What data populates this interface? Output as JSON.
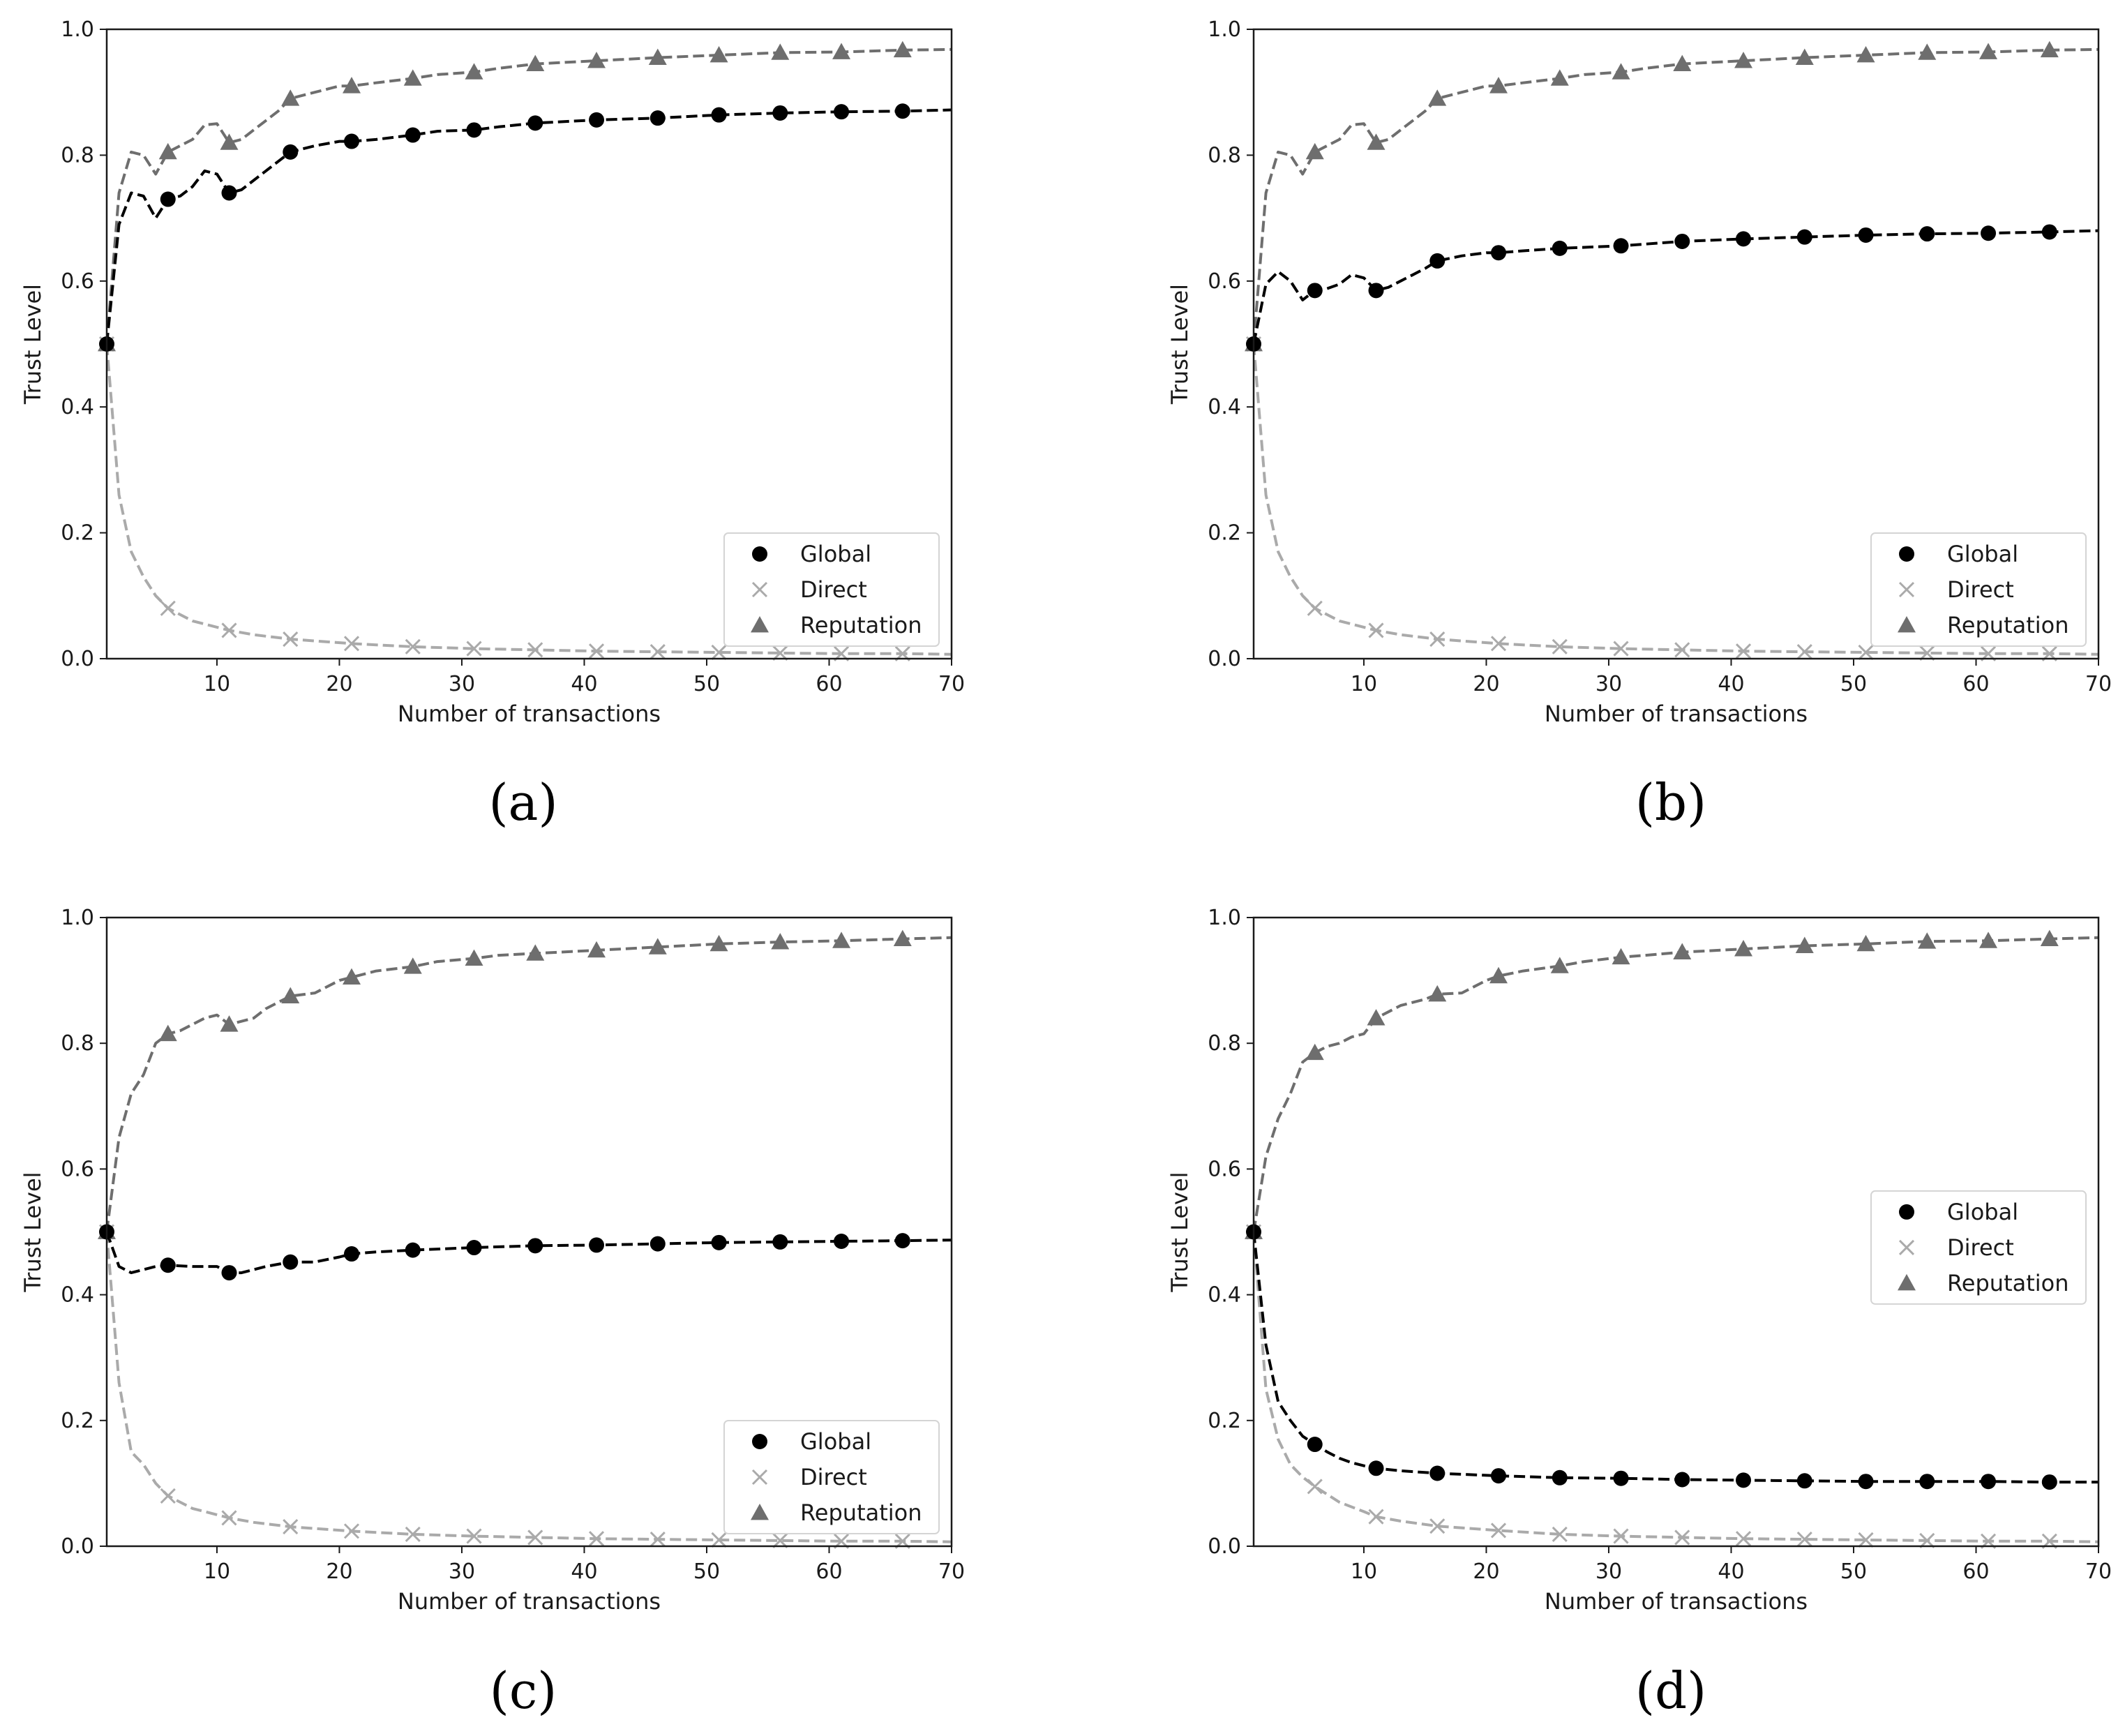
{
  "figure": {
    "panels": [
      {
        "caption": "(a)"
      },
      {
        "caption": "(b)"
      },
      {
        "caption": "(c)"
      },
      {
        "caption": "(d)"
      }
    ]
  },
  "styles": {
    "Global": {
      "color": "#000000",
      "marker": "circle"
    },
    "Direct": {
      "color": "#aaaaaa",
      "marker": "x"
    },
    "Reputation": {
      "color": "#6e6e6e",
      "marker": "triangle"
    }
  },
  "chart_data": [
    {
      "type": "line",
      "caption": "(a)",
      "xlabel": "Number of transactions",
      "ylabel": "Trust Level",
      "xlim": [
        1,
        70
      ],
      "ylim": [
        0,
        1.0
      ],
      "xticks": [
        10,
        20,
        30,
        40,
        50,
        60,
        70
      ],
      "yticks": [
        0.0,
        0.2,
        0.4,
        0.6,
        0.8,
        1.0
      ],
      "legend": {
        "position": "bottom-right",
        "entries": [
          "Global",
          "Direct",
          "Reputation"
        ]
      },
      "series": [
        {
          "name": "Global",
          "x": [
            1,
            2,
            3,
            4,
            5,
            6,
            7,
            8,
            9,
            10,
            11,
            12,
            13,
            14,
            15,
            16,
            18,
            20,
            21,
            23,
            26,
            28,
            31,
            33,
            36,
            41,
            46,
            51,
            56,
            61,
            66,
            70
          ],
          "y": [
            0.5,
            0.69,
            0.74,
            0.735,
            0.7,
            0.73,
            0.735,
            0.75,
            0.775,
            0.77,
            0.74,
            0.745,
            0.76,
            0.775,
            0.79,
            0.805,
            0.815,
            0.822,
            0.822,
            0.825,
            0.832,
            0.838,
            0.84,
            0.845,
            0.851,
            0.856,
            0.859,
            0.864,
            0.867,
            0.869,
            0.87,
            0.872
          ]
        },
        {
          "name": "Direct",
          "x": [
            1,
            2,
            3,
            4,
            5,
            6,
            8,
            10,
            11,
            13,
            16,
            21,
            26,
            31,
            36,
            41,
            46,
            51,
            56,
            61,
            66,
            70
          ],
          "y": [
            0.5,
            0.26,
            0.17,
            0.13,
            0.1,
            0.08,
            0.06,
            0.05,
            0.045,
            0.038,
            0.031,
            0.024,
            0.019,
            0.016,
            0.014,
            0.012,
            0.011,
            0.01,
            0.009,
            0.008,
            0.008,
            0.007
          ]
        },
        {
          "name": "Reputation",
          "x": [
            1,
            2,
            3,
            4,
            5,
            6,
            7,
            8,
            9,
            10,
            11,
            12,
            13,
            14,
            15,
            16,
            18,
            20,
            21,
            23,
            26,
            28,
            31,
            33,
            36,
            41,
            46,
            51,
            56,
            61,
            66,
            70
          ],
          "y": [
            0.5,
            0.74,
            0.805,
            0.8,
            0.77,
            0.805,
            0.815,
            0.825,
            0.848,
            0.85,
            0.82,
            0.825,
            0.84,
            0.855,
            0.87,
            0.89,
            0.9,
            0.91,
            0.91,
            0.915,
            0.922,
            0.928,
            0.932,
            0.938,
            0.945,
            0.95,
            0.955,
            0.959,
            0.963,
            0.964,
            0.967,
            0.968
          ]
        }
      ]
    },
    {
      "type": "line",
      "caption": "(b)",
      "xlabel": "Number of transactions",
      "ylabel": "Trust Level",
      "xlim": [
        1,
        70
      ],
      "ylim": [
        0,
        1.0
      ],
      "xticks": [
        10,
        20,
        30,
        40,
        50,
        60,
        70
      ],
      "yticks": [
        0.0,
        0.2,
        0.4,
        0.6,
        0.8,
        1.0
      ],
      "legend": {
        "position": "bottom-right",
        "entries": [
          "Global",
          "Direct",
          "Reputation"
        ]
      },
      "series": [
        {
          "name": "Global",
          "x": [
            1,
            2,
            3,
            4,
            5,
            6,
            7,
            8,
            9,
            10,
            11,
            12,
            13,
            14,
            15,
            16,
            18,
            20,
            21,
            23,
            26,
            31,
            36,
            41,
            46,
            51,
            56,
            61,
            66,
            70
          ],
          "y": [
            0.5,
            0.595,
            0.615,
            0.6,
            0.57,
            0.585,
            0.588,
            0.595,
            0.61,
            0.605,
            0.585,
            0.59,
            0.6,
            0.61,
            0.62,
            0.632,
            0.64,
            0.645,
            0.645,
            0.648,
            0.652,
            0.656,
            0.663,
            0.667,
            0.67,
            0.673,
            0.675,
            0.676,
            0.678,
            0.68
          ]
        },
        {
          "name": "Direct",
          "x": [
            1,
            2,
            3,
            4,
            5,
            6,
            8,
            10,
            11,
            13,
            16,
            21,
            26,
            31,
            36,
            41,
            46,
            51,
            56,
            61,
            66,
            70
          ],
          "y": [
            0.5,
            0.26,
            0.17,
            0.13,
            0.1,
            0.08,
            0.06,
            0.05,
            0.045,
            0.038,
            0.031,
            0.024,
            0.019,
            0.016,
            0.014,
            0.012,
            0.011,
            0.01,
            0.009,
            0.008,
            0.008,
            0.007
          ]
        },
        {
          "name": "Reputation",
          "x": [
            1,
            2,
            3,
            4,
            5,
            6,
            7,
            8,
            9,
            10,
            11,
            12,
            13,
            14,
            15,
            16,
            18,
            20,
            21,
            23,
            26,
            28,
            31,
            33,
            36,
            41,
            46,
            51,
            56,
            61,
            66,
            70
          ],
          "y": [
            0.5,
            0.74,
            0.805,
            0.8,
            0.77,
            0.805,
            0.815,
            0.825,
            0.848,
            0.85,
            0.82,
            0.825,
            0.84,
            0.855,
            0.87,
            0.89,
            0.9,
            0.91,
            0.91,
            0.915,
            0.922,
            0.928,
            0.932,
            0.938,
            0.945,
            0.95,
            0.955,
            0.959,
            0.963,
            0.964,
            0.967,
            0.968
          ]
        }
      ]
    },
    {
      "type": "line",
      "caption": "(c)",
      "xlabel": "Number of transactions",
      "ylabel": "Trust Level",
      "xlim": [
        1,
        70
      ],
      "ylim": [
        0,
        1.0
      ],
      "xticks": [
        10,
        20,
        30,
        40,
        50,
        60,
        70
      ],
      "yticks": [
        0.0,
        0.2,
        0.4,
        0.6,
        0.8,
        1.0
      ],
      "legend": {
        "position": "bottom-right",
        "entries": [
          "Global",
          "Direct",
          "Reputation"
        ]
      },
      "series": [
        {
          "name": "Global",
          "x": [
            1,
            2,
            3,
            4,
            5,
            6,
            8,
            10,
            11,
            12,
            13,
            14,
            16,
            18,
            20,
            21,
            23,
            26,
            31,
            36,
            41,
            46,
            51,
            56,
            61,
            66,
            70
          ],
          "y": [
            0.5,
            0.445,
            0.435,
            0.44,
            0.445,
            0.447,
            0.445,
            0.445,
            0.435,
            0.435,
            0.44,
            0.445,
            0.452,
            0.452,
            0.46,
            0.465,
            0.468,
            0.471,
            0.475,
            0.478,
            0.479,
            0.481,
            0.483,
            0.484,
            0.485,
            0.486,
            0.487
          ]
        },
        {
          "name": "Direct",
          "x": [
            1,
            2,
            3,
            4,
            5,
            6,
            8,
            10,
            11,
            13,
            16,
            21,
            26,
            31,
            36,
            41,
            46,
            51,
            56,
            61,
            66,
            70
          ],
          "y": [
            0.5,
            0.26,
            0.15,
            0.13,
            0.1,
            0.08,
            0.06,
            0.05,
            0.045,
            0.038,
            0.031,
            0.024,
            0.019,
            0.016,
            0.014,
            0.012,
            0.011,
            0.01,
            0.009,
            0.008,
            0.008,
            0.007
          ]
        },
        {
          "name": "Reputation",
          "x": [
            1,
            2,
            3,
            4,
            5,
            6,
            7,
            8,
            9,
            10,
            11,
            12,
            13,
            14,
            15,
            16,
            18,
            20,
            21,
            23,
            26,
            28,
            31,
            33,
            36,
            41,
            46,
            51,
            56,
            61,
            66,
            70
          ],
          "y": [
            0.5,
            0.65,
            0.72,
            0.75,
            0.8,
            0.815,
            0.82,
            0.83,
            0.84,
            0.845,
            0.83,
            0.835,
            0.84,
            0.855,
            0.865,
            0.875,
            0.88,
            0.9,
            0.905,
            0.915,
            0.922,
            0.93,
            0.935,
            0.94,
            0.943,
            0.948,
            0.953,
            0.958,
            0.961,
            0.963,
            0.966,
            0.968
          ]
        }
      ]
    },
    {
      "type": "line",
      "caption": "(d)",
      "xlabel": "Number of transactions",
      "ylabel": "Trust Level",
      "xlim": [
        1,
        70
      ],
      "ylim": [
        0,
        1.0
      ],
      "xticks": [
        10,
        20,
        30,
        40,
        50,
        60,
        70
      ],
      "yticks": [
        0.0,
        0.2,
        0.4,
        0.6,
        0.8,
        1.0
      ],
      "legend": {
        "position": "center-right",
        "entries": [
          "Global",
          "Direct",
          "Reputation"
        ]
      },
      "series": [
        {
          "name": "Global",
          "x": [
            1,
            2,
            3,
            4,
            5,
            6,
            7,
            8,
            9,
            10,
            11,
            13,
            16,
            21,
            26,
            31,
            36,
            41,
            46,
            51,
            56,
            61,
            66,
            70
          ],
          "y": [
            0.5,
            0.32,
            0.23,
            0.2,
            0.175,
            0.162,
            0.15,
            0.14,
            0.133,
            0.128,
            0.124,
            0.12,
            0.116,
            0.112,
            0.109,
            0.108,
            0.106,
            0.105,
            0.104,
            0.103,
            0.103,
            0.103,
            0.102,
            0.102
          ]
        },
        {
          "name": "Direct",
          "x": [
            1,
            2,
            3,
            4,
            5,
            6,
            8,
            10,
            11,
            13,
            16,
            21,
            26,
            31,
            36,
            41,
            46,
            51,
            56,
            61,
            66,
            70
          ],
          "y": [
            0.5,
            0.25,
            0.17,
            0.13,
            0.11,
            0.095,
            0.07,
            0.055,
            0.047,
            0.04,
            0.032,
            0.025,
            0.019,
            0.016,
            0.014,
            0.012,
            0.011,
            0.01,
            0.009,
            0.008,
            0.008,
            0.007
          ]
        },
        {
          "name": "Reputation",
          "x": [
            1,
            2,
            3,
            4,
            5,
            6,
            7,
            8,
            9,
            10,
            11,
            12,
            13,
            14,
            15,
            16,
            18,
            20,
            21,
            23,
            26,
            28,
            31,
            33,
            36,
            41,
            46,
            51,
            56,
            61,
            66,
            70
          ],
          "y": [
            0.5,
            0.62,
            0.68,
            0.72,
            0.77,
            0.785,
            0.795,
            0.8,
            0.81,
            0.815,
            0.84,
            0.85,
            0.86,
            0.865,
            0.87,
            0.878,
            0.88,
            0.9,
            0.907,
            0.915,
            0.923,
            0.93,
            0.937,
            0.94,
            0.945,
            0.95,
            0.955,
            0.958,
            0.962,
            0.963,
            0.966,
            0.968
          ]
        }
      ]
    }
  ]
}
